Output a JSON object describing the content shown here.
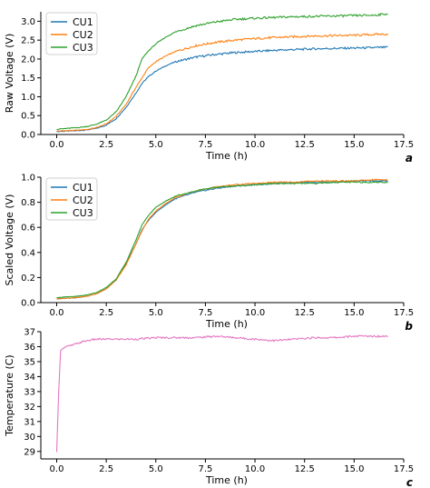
{
  "colors": {
    "CU1": "#1f77b4",
    "CU2": "#ff7f0e",
    "CU3": "#2ca02c",
    "temperature": "#e377c2",
    "axis": "#000000"
  },
  "chart_data": [
    {
      "type": "line",
      "panel_label": "a",
      "xlabel": "Time (h)",
      "ylabel": "Raw Voltage (V)",
      "xlim": [
        -0.8,
        17.5
      ],
      "ylim": [
        0,
        3.25
      ],
      "xticks": [
        "0.0",
        "2.5",
        "5.0",
        "7.5",
        "10.0",
        "12.5",
        "15.0",
        "17.5"
      ],
      "yticks": [
        "0.0",
        "0.5",
        "1.0",
        "1.5",
        "2.0",
        "2.5",
        "3.0"
      ],
      "legend_position": "top-left",
      "grid": false,
      "series": [
        {
          "name": "CU1",
          "color": "#1f77b4",
          "x": [
            0,
            0.5,
            1.0,
            1.5,
            2.0,
            2.5,
            3.0,
            3.5,
            4.0,
            4.3,
            4.6,
            5.0,
            5.5,
            6.0,
            7.0,
            8.0,
            9.0,
            10.0,
            11.0,
            12.0,
            13.0,
            14.0,
            15.0,
            16.0,
            16.7
          ],
          "y": [
            0.08,
            0.09,
            0.1,
            0.12,
            0.16,
            0.25,
            0.42,
            0.72,
            1.1,
            1.35,
            1.52,
            1.68,
            1.82,
            1.93,
            2.05,
            2.12,
            2.17,
            2.2,
            2.23,
            2.25,
            2.27,
            2.28,
            2.29,
            2.3,
            2.31
          ]
        },
        {
          "name": "CU2",
          "color": "#ff7f0e",
          "x": [
            0,
            0.5,
            1.0,
            1.5,
            2.0,
            2.5,
            3.0,
            3.5,
            4.0,
            4.3,
            4.6,
            5.0,
            5.5,
            6.0,
            7.0,
            8.0,
            9.0,
            10.0,
            11.0,
            12.0,
            13.0,
            14.0,
            15.0,
            16.0,
            16.7
          ],
          "y": [
            0.09,
            0.1,
            0.11,
            0.13,
            0.18,
            0.28,
            0.48,
            0.8,
            1.25,
            1.5,
            1.75,
            1.93,
            2.08,
            2.2,
            2.35,
            2.44,
            2.5,
            2.54,
            2.57,
            2.59,
            2.61,
            2.62,
            2.63,
            2.65,
            2.66
          ]
        },
        {
          "name": "CU3",
          "color": "#2ca02c",
          "x": [
            0,
            0.5,
            1.0,
            1.5,
            2.0,
            2.5,
            3.0,
            3.5,
            4.0,
            4.3,
            4.6,
            5.0,
            5.5,
            6.0,
            7.0,
            8.0,
            9.0,
            10.0,
            11.0,
            12.0,
            13.0,
            14.0,
            15.0,
            16.0,
            16.7
          ],
          "y": [
            0.14,
            0.16,
            0.18,
            0.21,
            0.27,
            0.38,
            0.6,
            1.0,
            1.55,
            2.0,
            2.2,
            2.4,
            2.58,
            2.72,
            2.88,
            2.98,
            3.05,
            3.08,
            3.1,
            3.12,
            3.13,
            3.14,
            3.15,
            3.16,
            3.2
          ]
        }
      ]
    },
    {
      "type": "line",
      "panel_label": "b",
      "xlabel": "Time (h)",
      "ylabel": "Scaled Voltage (V)",
      "xlim": [
        -0.8,
        17.5
      ],
      "ylim": [
        0,
        1.0
      ],
      "xticks": [
        "0.0",
        "2.5",
        "5.0",
        "7.5",
        "10.0",
        "12.5",
        "15.0",
        "17.5"
      ],
      "yticks": [
        "0.0",
        "0.2",
        "0.4",
        "0.6",
        "0.8",
        "1.0"
      ],
      "legend_position": "top-left",
      "grid": false,
      "series": [
        {
          "name": "CU1",
          "color": "#1f77b4",
          "x": [
            0,
            0.5,
            1.0,
            1.5,
            2.0,
            2.5,
            3.0,
            3.5,
            4.0,
            4.3,
            4.6,
            5.0,
            5.5,
            6.0,
            7.0,
            8.0,
            9.0,
            10.0,
            11.0,
            12.0,
            13.0,
            14.0,
            15.0,
            16.0,
            16.7
          ],
          "y": [
            0.03,
            0.035,
            0.04,
            0.05,
            0.07,
            0.11,
            0.18,
            0.31,
            0.47,
            0.58,
            0.65,
            0.72,
            0.78,
            0.83,
            0.88,
            0.91,
            0.93,
            0.94,
            0.95,
            0.96,
            0.96,
            0.96,
            0.97,
            0.97,
            0.97
          ]
        },
        {
          "name": "CU2",
          "color": "#ff7f0e",
          "x": [
            0,
            0.5,
            1.0,
            1.5,
            2.0,
            2.5,
            3.0,
            3.5,
            4.0,
            4.3,
            4.6,
            5.0,
            5.5,
            6.0,
            7.0,
            8.0,
            9.0,
            10.0,
            11.0,
            12.0,
            13.0,
            14.0,
            15.0,
            16.0,
            16.7
          ],
          "y": [
            0.03,
            0.035,
            0.04,
            0.05,
            0.07,
            0.11,
            0.18,
            0.3,
            0.47,
            0.57,
            0.66,
            0.73,
            0.79,
            0.84,
            0.89,
            0.92,
            0.94,
            0.95,
            0.96,
            0.96,
            0.97,
            0.97,
            0.97,
            0.98,
            0.98
          ]
        },
        {
          "name": "CU3",
          "color": "#2ca02c",
          "x": [
            0,
            0.5,
            1.0,
            1.5,
            2.0,
            2.5,
            3.0,
            3.5,
            4.0,
            4.3,
            4.6,
            5.0,
            5.5,
            6.0,
            7.0,
            8.0,
            9.0,
            10.0,
            11.0,
            12.0,
            13.0,
            14.0,
            15.0,
            16.0,
            16.7
          ],
          "y": [
            0.04,
            0.045,
            0.05,
            0.06,
            0.08,
            0.12,
            0.19,
            0.32,
            0.5,
            0.62,
            0.69,
            0.76,
            0.81,
            0.85,
            0.89,
            0.92,
            0.93,
            0.94,
            0.95,
            0.95,
            0.95,
            0.96,
            0.96,
            0.96,
            0.96
          ]
        }
      ]
    },
    {
      "type": "line",
      "panel_label": "c",
      "xlabel": "Time (h)",
      "ylabel": "Temperature (C)",
      "xlim": [
        -0.8,
        17.5
      ],
      "ylim": [
        28.5,
        37
      ],
      "xticks": [
        "0.0",
        "2.5",
        "5.0",
        "7.5",
        "10.0",
        "12.5",
        "15.0",
        "17.5"
      ],
      "yticks": [
        "29",
        "30",
        "31",
        "32",
        "33",
        "34",
        "35",
        "36",
        "37"
      ],
      "grid": false,
      "series": [
        {
          "name": "",
          "color": "#e377c2",
          "x": [
            0,
            0.1,
            0.2,
            0.3,
            0.5,
            0.8,
            1.0,
            1.5,
            2.0,
            3.0,
            4.0,
            5.0,
            6.0,
            7.0,
            8.0,
            9.0,
            10.0,
            11.0,
            12.0,
            13.0,
            14.0,
            15.0,
            16.0,
            16.7
          ],
          "y": [
            28.9,
            33.0,
            35.8,
            35.9,
            36.0,
            36.1,
            36.2,
            36.4,
            36.5,
            36.5,
            36.5,
            36.6,
            36.6,
            36.6,
            36.7,
            36.6,
            36.5,
            36.4,
            36.5,
            36.6,
            36.6,
            36.7,
            36.7,
            36.7
          ]
        }
      ]
    }
  ]
}
